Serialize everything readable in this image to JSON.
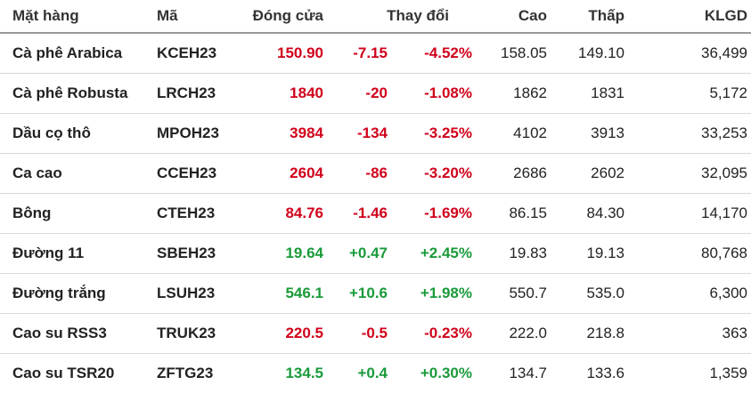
{
  "colors": {
    "negative": "#d0021b",
    "positive": "#1a9a3a"
  },
  "headers": {
    "name": "Mặt hàng",
    "code": "Mã",
    "close": "Đóng cửa",
    "change": "Thay đổi",
    "high": "Cao",
    "low": "Thấp",
    "volume": "KLGD"
  },
  "rows": [
    {
      "name": "Cà phê Arabica",
      "code": "KCEH23",
      "close": "150.90",
      "chg": "-7.15",
      "pct": "-4.52%",
      "high": "158.05",
      "low": "149.10",
      "vol": "36,499",
      "dir": "negative"
    },
    {
      "name": "Cà phê Robusta",
      "code": "LRCH23",
      "close": "1840",
      "chg": "-20",
      "pct": "-1.08%",
      "high": "1862",
      "low": "1831",
      "vol": "5,172",
      "dir": "negative"
    },
    {
      "name": "Dầu cọ thô",
      "code": "MPOH23",
      "close": "3984",
      "chg": "-134",
      "pct": "-3.25%",
      "high": "4102",
      "low": "3913",
      "vol": "33,253",
      "dir": "negative"
    },
    {
      "name": "Ca cao",
      "code": "CCEH23",
      "close": "2604",
      "chg": "-86",
      "pct": "-3.20%",
      "high": "2686",
      "low": "2602",
      "vol": "32,095",
      "dir": "negative"
    },
    {
      "name": "Bông",
      "code": "CTEH23",
      "close": "84.76",
      "chg": "-1.46",
      "pct": "-1.69%",
      "high": "86.15",
      "low": "84.30",
      "vol": "14,170",
      "dir": "negative"
    },
    {
      "name": "Đường 11",
      "code": "SBEH23",
      "close": "19.64",
      "chg": "+0.47",
      "pct": "+2.45%",
      "high": "19.83",
      "low": "19.13",
      "vol": "80,768",
      "dir": "positive"
    },
    {
      "name": "Đường trắng",
      "code": "LSUH23",
      "close": "546.1",
      "chg": "+10.6",
      "pct": "+1.98%",
      "high": "550.7",
      "low": "535.0",
      "vol": "6,300",
      "dir": "positive"
    },
    {
      "name": "Cao su RSS3",
      "code": "TRUK23",
      "close": "220.5",
      "chg": "-0.5",
      "pct": "-0.23%",
      "high": "222.0",
      "low": "218.8",
      "vol": "363",
      "dir": "negative"
    },
    {
      "name": "Cao su TSR20",
      "code": "ZFTG23",
      "close": "134.5",
      "chg": "+0.4",
      "pct": "+0.30%",
      "high": "134.7",
      "low": "133.6",
      "vol": "1,359",
      "dir": "positive"
    }
  ]
}
